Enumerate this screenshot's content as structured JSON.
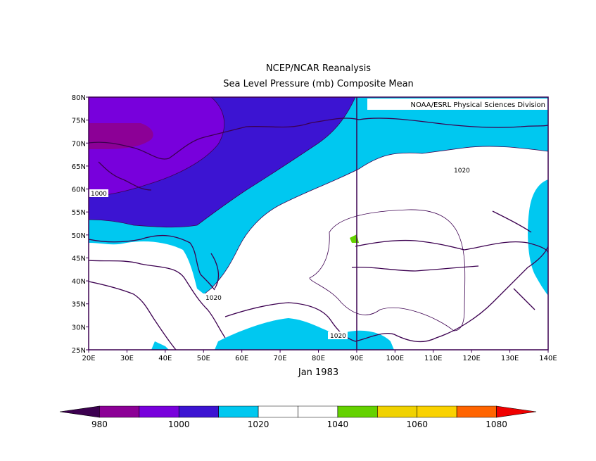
{
  "title": "NCEP/NCAR Reanalysis",
  "subtitle": "Sea Level Pressure (mb) Composite Mean",
  "credit": "NOAA/ESRL Physical Sciences Division",
  "date_label": "Jan 1983",
  "map": {
    "lon_range": [
      20,
      140
    ],
    "lat_range": [
      25,
      80
    ],
    "lon_ticks": [
      "20E",
      "30E",
      "40E",
      "50E",
      "60E",
      "70E",
      "80E",
      "90E",
      "100E",
      "110E",
      "120E",
      "130E",
      "140E"
    ],
    "lat_ticks": [
      "25N",
      "30N",
      "35N",
      "40N",
      "45N",
      "50N",
      "55N",
      "60N",
      "65N",
      "70N",
      "75N",
      "80N"
    ],
    "contour_labels": [
      "1000",
      "1020",
      "1020",
      "1020"
    ]
  },
  "colorbar": {
    "colors": [
      "#3c0050",
      "#8c0096",
      "#7800dc",
      "#3c14d2",
      "#00c8f0",
      "#ffffff",
      "#ffffff",
      "#64d200",
      "#f0d200",
      "#fad200",
      "#ff6400",
      "#f00000"
    ],
    "labels": [
      "980",
      "1000",
      "1020",
      "1040",
      "1060",
      "1080"
    ]
  }
}
